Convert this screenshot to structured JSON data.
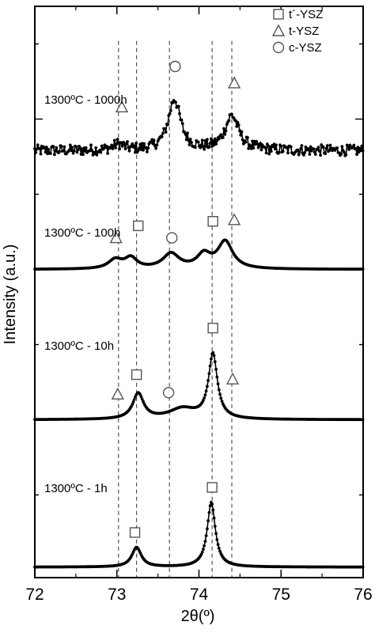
{
  "chart_data": {
    "type": "line",
    "xlabel": "2θ(º)",
    "ylabel": "Intensity (a.u.)",
    "xlim": [
      72,
      76
    ],
    "x_ticks": [
      "72",
      "73",
      "74",
      "75",
      "76"
    ],
    "grid": false,
    "legend_position": "top-right",
    "legend": [
      {
        "marker": "square",
        "label": "t´-YSZ"
      },
      {
        "marker": "triangle",
        "label": "t-YSZ"
      },
      {
        "marker": "circle",
        "label": "c-YSZ"
      }
    ],
    "reference_lines_2theta": [
      73.02,
      73.24,
      73.64,
      74.16,
      74.4
    ],
    "series": [
      {
        "name": "1300ºC - 1h",
        "baseline": 0.02,
        "noise": 0.0,
        "peaks": [
          {
            "center": 73.24,
            "height": 0.13,
            "width": 0.07
          },
          {
            "center": 74.15,
            "height": 0.43,
            "width": 0.06
          }
        ],
        "markers": [
          {
            "type": "square",
            "x": 73.22,
            "y": 0.25
          },
          {
            "type": "square",
            "x": 74.16,
            "y": 0.55
          }
        ]
      },
      {
        "name": "1300ºC - 10h",
        "baseline": 1.0,
        "noise": 0.0,
        "peaks": [
          {
            "center": 73.26,
            "height": 0.17,
            "width": 0.08
          },
          {
            "center": 73.8,
            "height": 0.07,
            "width": 0.2
          },
          {
            "center": 74.17,
            "height": 0.43,
            "width": 0.065
          }
        ],
        "markers": [
          {
            "type": "triangle",
            "x": 73.01,
            "y": 1.17
          },
          {
            "type": "square",
            "x": 73.24,
            "y": 1.3
          },
          {
            "type": "circle",
            "x": 73.63,
            "y": 1.18
          },
          {
            "type": "square",
            "x": 74.17,
            "y": 1.61
          },
          {
            "type": "triangle",
            "x": 74.41,
            "y": 1.27
          }
        ]
      },
      {
        "name": "1300ºC - 100h",
        "baseline": 2.0,
        "noise": 0.0,
        "peaks": [
          {
            "center": 72.98,
            "height": 0.06,
            "width": 0.1
          },
          {
            "center": 73.17,
            "height": 0.07,
            "width": 0.09
          },
          {
            "center": 73.66,
            "height": 0.1,
            "width": 0.12
          },
          {
            "center": 74.06,
            "height": 0.09,
            "width": 0.1
          },
          {
            "center": 74.32,
            "height": 0.18,
            "width": 0.11
          }
        ],
        "markers": [
          {
            "type": "triangle",
            "x": 72.99,
            "y": 2.21
          },
          {
            "type": "square",
            "x": 73.26,
            "y": 2.29
          },
          {
            "type": "circle",
            "x": 73.67,
            "y": 2.21
          },
          {
            "type": "square",
            "x": 74.17,
            "y": 2.32
          },
          {
            "type": "triangle",
            "x": 74.43,
            "y": 2.33
          }
        ]
      },
      {
        "name": "1300ºC - 1000h",
        "baseline": 2.79,
        "noise": 0.012,
        "peaks": [
          {
            "center": 73.02,
            "height": 0.04,
            "width": 0.08
          },
          {
            "center": 73.7,
            "height": 0.34,
            "width": 0.09
          },
          {
            "center": 74.4,
            "height": 0.23,
            "width": 0.1
          }
        ],
        "markers": [
          {
            "type": "triangle",
            "x": 73.06,
            "y": 3.08
          },
          {
            "type": "circle",
            "x": 73.71,
            "y": 3.35
          },
          {
            "type": "triangle",
            "x": 74.43,
            "y": 3.24
          }
        ]
      }
    ]
  }
}
